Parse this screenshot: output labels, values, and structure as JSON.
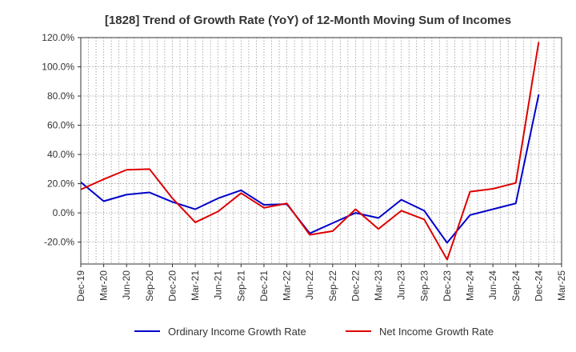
{
  "chart_data": {
    "type": "line",
    "title": "[1828]  Trend of Growth Rate (YoY) of 12-Month Moving Sum of Incomes",
    "xlabel": "",
    "ylabel": "",
    "ylim": [
      -35,
      120
    ],
    "y_ticks": [
      -20,
      0,
      20,
      40,
      60,
      80,
      100,
      120
    ],
    "y_tick_labels": [
      "-20.0%",
      "0.0%",
      "20.0%",
      "40.0%",
      "60.0%",
      "80.0%",
      "100.0%",
      "120.0%"
    ],
    "x_tick_labels": [
      "Dec-19",
      "Mar-20",
      "Jun-20",
      "Sep-20",
      "Dec-20",
      "Mar-21",
      "Jun-21",
      "Sep-21",
      "Dec-21",
      "Mar-22",
      "Jun-22",
      "Sep-22",
      "Dec-22",
      "Mar-23",
      "Jun-23",
      "Sep-23",
      "Dec-23",
      "Mar-24",
      "Jun-24",
      "Sep-24",
      "Dec-24",
      "Mar-25"
    ],
    "grid": true,
    "legend_position": "bottom",
    "series": [
      {
        "name": "Ordinary Income Growth Rate",
        "color": "#0000cc",
        "values": [
          21,
          8,
          12.5,
          14,
          7.5,
          2.5,
          10,
          15.5,
          5.5,
          6,
          -14,
          -7,
          0,
          -3.5,
          9,
          1.5,
          -20.5,
          -1.5,
          2.5,
          6.5,
          81,
          null
        ]
      },
      {
        "name": "Net Income Growth Rate",
        "color": "#dd0000",
        "values": [
          16,
          23,
          29.5,
          30,
          10,
          -6.5,
          1,
          13.5,
          3.5,
          6.5,
          -15,
          -12.5,
          2.5,
          -11,
          1.5,
          -4.5,
          -32,
          14.5,
          16.5,
          20.5,
          117,
          null
        ]
      }
    ]
  }
}
